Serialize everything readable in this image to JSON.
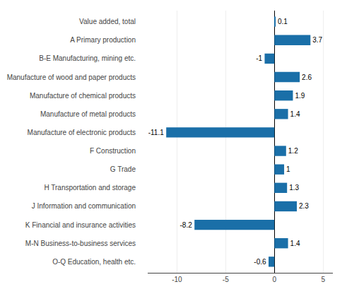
{
  "chart_data": {
    "type": "bar",
    "orientation": "horizontal",
    "categories": [
      "O-Q Education, health etc.",
      "M-N Business-to-business services",
      "K Financial and insurance activities",
      "J Information and communication",
      "H Transportation and storage",
      "G Trade",
      "F Construction",
      "Manufacture of electronic products",
      "Manufacture of metal products",
      "Manufacture of chemical products",
      "Manufacture of wood and paper products",
      "B-E Manufacturing, mining etc.",
      "A Primary production",
      "Value added, total"
    ],
    "values": [
      -0.6,
      1.4,
      -8.2,
      2.3,
      1.3,
      1.0,
      1.2,
      -11.1,
      1.4,
      1.9,
      2.6,
      -1.0,
      3.7,
      0.1
    ],
    "color": "#1a6fa8",
    "xlim": [
      -13,
      6
    ],
    "xticks": [
      -10,
      -5,
      0,
      5
    ],
    "grid": true,
    "data_labels": true
  }
}
